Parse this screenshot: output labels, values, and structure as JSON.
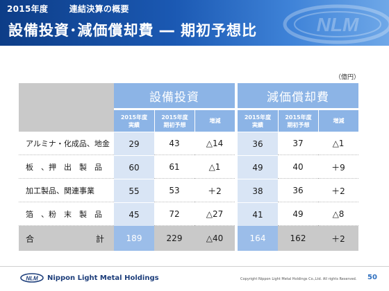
{
  "header": {
    "fiscal_year": "2015年度",
    "section": "連結決算の概要",
    "title": "設備投資･減価償却費 ― 期初予想比"
  },
  "unit": "（億円）",
  "table": {
    "groups": [
      "設備投資",
      "減価償却費"
    ],
    "subheaders": [
      [
        "2015年度",
        "実績"
      ],
      [
        "2015年度",
        "期初予想"
      ],
      [
        "増減"
      ],
      [
        "2015年度",
        "実績"
      ],
      [
        "2015年度",
        "期初予想"
      ],
      [
        "増減"
      ]
    ],
    "rows": [
      {
        "label": "アルミナ・化成品、地金",
        "values": [
          "29",
          "43",
          "△14",
          "36",
          "37",
          "△1"
        ]
      },
      {
        "label": "板　、押　出　製　品",
        "values": [
          "60",
          "61",
          "△1",
          "49",
          "40",
          "＋9"
        ]
      },
      {
        "label": "加工製品、関連事業",
        "values": [
          "55",
          "53",
          "＋2",
          "38",
          "36",
          "＋2"
        ]
      },
      {
        "label": "箔　、粉　末　製　品",
        "values": [
          "45",
          "72",
          "△27",
          "41",
          "49",
          "△8"
        ]
      }
    ],
    "total": {
      "label_left": "合",
      "label_right": "計",
      "values": [
        "189",
        "229",
        "△40",
        "164",
        "162",
        "＋2"
      ]
    }
  },
  "footer": {
    "logo_text": "NLM",
    "company": "Nippon Light Metal Holdings",
    "copyright": "Copyright Nippon Light Metal Holdings Co.,Ltd. All rights Reserved.",
    "page_number": "50"
  },
  "colors": {
    "banner": "#1b59b3",
    "header_cell": "#8cb4e6",
    "value_cell": "#d9e5f5",
    "total_row": "#c9c9c9"
  }
}
